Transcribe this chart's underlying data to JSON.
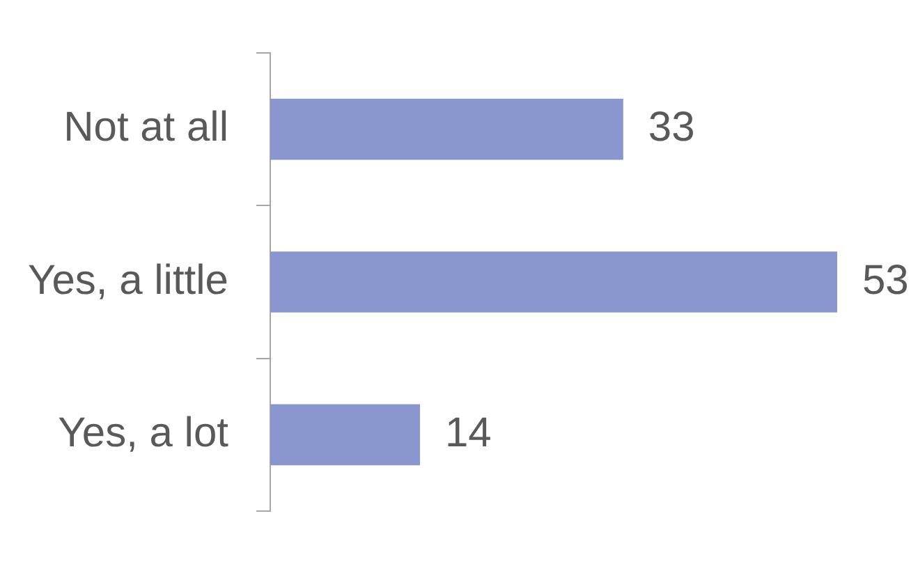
{
  "chart_data": {
    "type": "bar",
    "orientation": "horizontal",
    "categories": [
      "Not at all",
      "Yes, a little",
      "Yes, a lot"
    ],
    "values": [
      33,
      53,
      14
    ],
    "color": "#8a97cf",
    "data_labels": true,
    "grid": false,
    "legend": false
  }
}
